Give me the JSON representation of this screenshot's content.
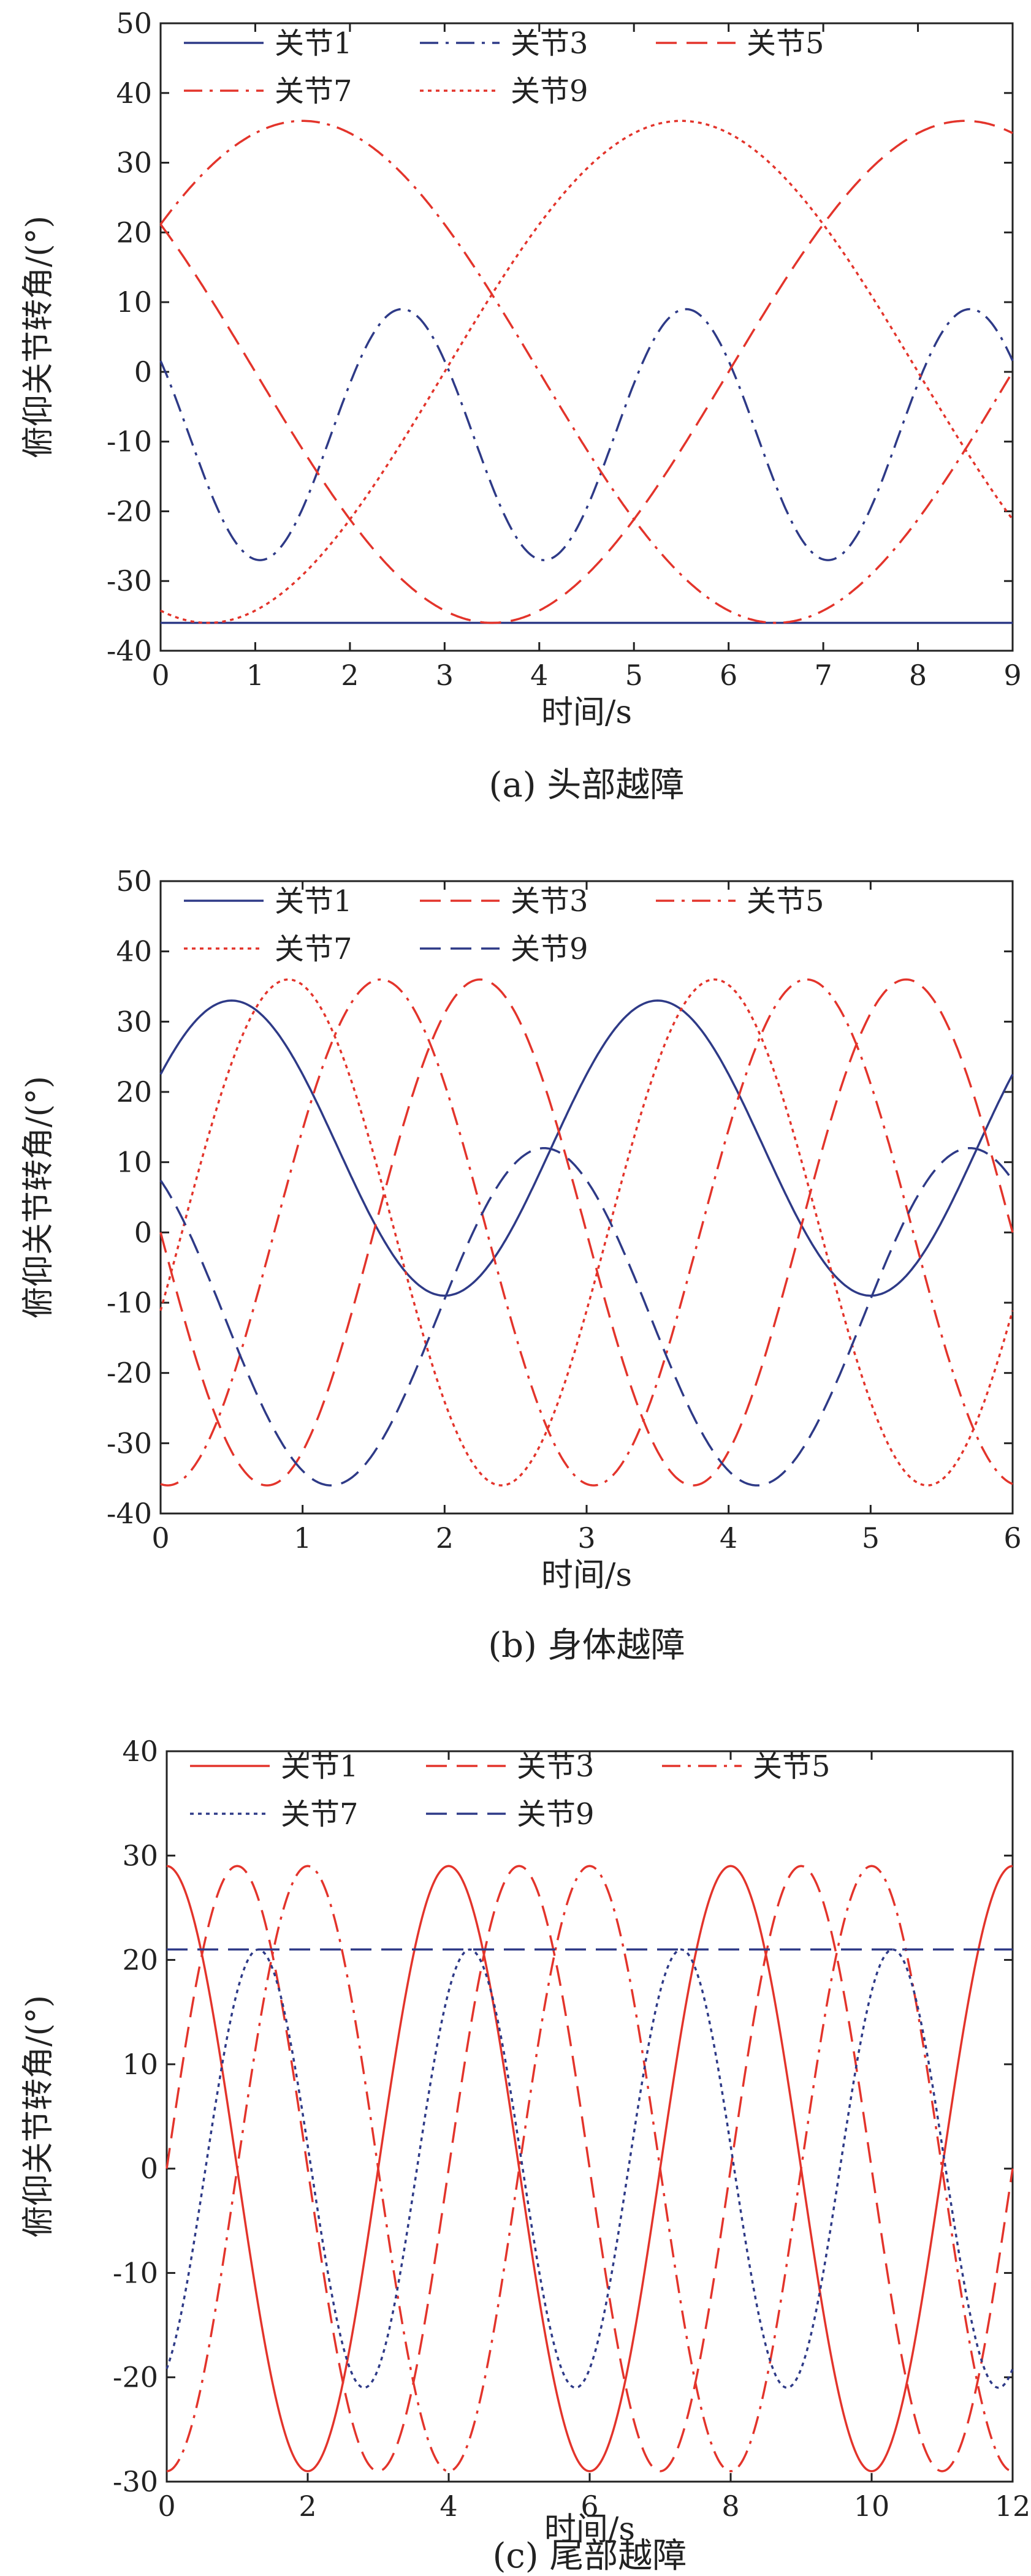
{
  "colors": {
    "blue": "#2e3a87",
    "red": "#e3342b"
  },
  "chart_data": [
    {
      "type": "line",
      "caption": "(a)  头部越障",
      "xlabel": "时间/s",
      "ylabel": "俯仰关节转角/(°)",
      "xlim": [
        0,
        9
      ],
      "ylim": [
        -40,
        50
      ],
      "xticks": [
        0,
        1,
        2,
        3,
        4,
        5,
        6,
        7,
        8,
        9
      ],
      "yticks": [
        -40,
        -30,
        -20,
        -10,
        0,
        10,
        20,
        30,
        40,
        50
      ],
      "legend_rows": [
        [
          0,
          1,
          2
        ],
        [
          3,
          4
        ]
      ],
      "series": [
        {
          "name": "关节1",
          "style": "solid",
          "color": "blue",
          "offset": -36,
          "amplitude": 0,
          "period": 3,
          "peak_at": 0
        },
        {
          "name": "关节3",
          "style": "dashdot",
          "color": "blue",
          "offset": -9,
          "amplitude": 18,
          "period": 3,
          "peak_at": 2.55
        },
        {
          "name": "关节5",
          "style": "longdash",
          "color": "red",
          "offset": 0,
          "amplitude": 36,
          "period": 10,
          "peak_at": 8.5
        },
        {
          "name": "关节7",
          "style": "dashdot",
          "color": "red",
          "offset": 0,
          "amplitude": 36,
          "period": 10,
          "peak_at": 1.5
        },
        {
          "name": "关节9",
          "style": "dotted",
          "color": "red",
          "offset": 0,
          "amplitude": 36,
          "period": 10,
          "peak_at": 5.5
        }
      ]
    },
    {
      "type": "line",
      "caption": "(b)  身体越障",
      "xlabel": "时间/s",
      "ylabel": "俯仰关节转角/(°)",
      "xlim": [
        0,
        6
      ],
      "ylim": [
        -40,
        50
      ],
      "xticks": [
        0,
        1,
        2,
        3,
        4,
        5,
        6
      ],
      "yticks": [
        -40,
        -30,
        -20,
        -10,
        0,
        10,
        20,
        30,
        40,
        50
      ],
      "legend_rows": [
        [
          0,
          1,
          2
        ],
        [
          3,
          4
        ]
      ],
      "series": [
        {
          "name": "关节1",
          "style": "solid",
          "color": "blue",
          "offset": 12,
          "amplitude": 21,
          "period": 3,
          "peak_at": 0.5
        },
        {
          "name": "关节3",
          "style": "longdash",
          "color": "red",
          "offset": 0,
          "amplitude": 36,
          "period": 3,
          "peak_at": 2.25
        },
        {
          "name": "关节5",
          "style": "dashdot",
          "color": "red",
          "offset": 0,
          "amplitude": 36,
          "period": 3,
          "peak_at": 1.55
        },
        {
          "name": "关节7",
          "style": "dotted",
          "color": "red",
          "offset": 0,
          "amplitude": 36,
          "period": 3,
          "peak_at": 0.9
        },
        {
          "name": "关节9",
          "style": "longdash",
          "color": "blue",
          "offset": -12,
          "amplitude": 24,
          "period": 3,
          "peak_at": 2.7
        }
      ]
    },
    {
      "type": "line",
      "caption": "(c)  尾部越障",
      "xlabel": "时间/s",
      "ylabel": "俯仰关节转角/(°)",
      "xlim": [
        0,
        12
      ],
      "ylim": [
        -30,
        40
      ],
      "xticks": [
        0,
        2,
        4,
        6,
        8,
        10,
        12
      ],
      "yticks": [
        -30,
        -20,
        -10,
        0,
        10,
        20,
        30,
        40
      ],
      "legend_rows": [
        [
          0,
          1,
          2
        ],
        [
          3,
          4
        ]
      ],
      "series": [
        {
          "name": "关节1",
          "style": "solid",
          "color": "red",
          "offset": 0,
          "amplitude": 29,
          "period": 4,
          "peak_at": 0
        },
        {
          "name": "关节3",
          "style": "longdash",
          "color": "red",
          "offset": 0,
          "amplitude": 29,
          "period": 4,
          "peak_at": 1
        },
        {
          "name": "关节5",
          "style": "dashdot",
          "color": "red",
          "offset": 0,
          "amplitude": 29,
          "period": 4,
          "peak_at": 2
        },
        {
          "name": "关节7",
          "style": "dotted",
          "color": "blue",
          "offset": 0,
          "amplitude": 21,
          "period": 3,
          "peak_at": 1.3
        },
        {
          "name": "关节9",
          "style": "longdash",
          "color": "blue",
          "offset": 21,
          "amplitude": 0,
          "period": 4,
          "peak_at": 0
        }
      ]
    }
  ]
}
